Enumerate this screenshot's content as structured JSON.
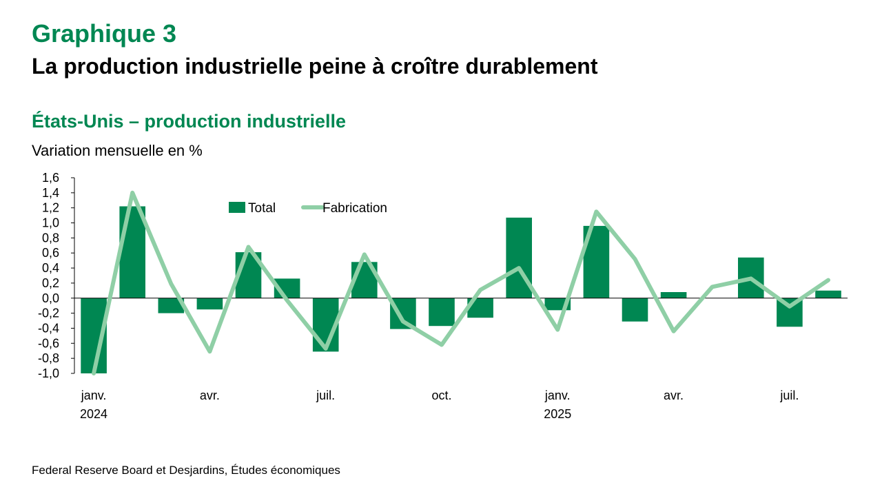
{
  "header": {
    "label": "Graphique 3",
    "title": "La production industrielle peine à croître durablement",
    "subtitle": "États-Unis – production industrielle",
    "unit": "Variation mensuelle en %"
  },
  "source": "Federal Reserve Board et Desjardins, Études économiques",
  "chart_data": {
    "type": "bar",
    "title": "États-Unis – production industrielle",
    "ylabel": "Variation mensuelle en %",
    "xlabel": "",
    "ylim": [
      -1.0,
      1.6
    ],
    "yticks": [
      -1.0,
      -0.8,
      -0.6,
      -0.4,
      -0.2,
      0.0,
      0.2,
      0.4,
      0.6,
      0.8,
      1.0,
      1.2,
      1.4,
      1.6
    ],
    "ytick_labels": [
      "-1,0",
      "-0,8",
      "-0,6",
      "-0,4",
      "-0,2",
      "0,0",
      "0,2",
      "0,4",
      "0,6",
      "0,8",
      "1,0",
      "1,2",
      "1,4",
      "1,6"
    ],
    "categories": [
      "2024-01",
      "2024-02",
      "2024-03",
      "2024-04",
      "2024-05",
      "2024-06",
      "2024-07",
      "2024-08",
      "2024-09",
      "2024-10",
      "2024-11",
      "2024-12",
      "2025-01",
      "2025-02",
      "2025-03",
      "2025-04",
      "2025-05",
      "2025-06",
      "2025-07",
      "2025-08"
    ],
    "x_tick_labels": [
      {
        "index": 0,
        "line1": "janv.",
        "line2": "2024"
      },
      {
        "index": 3,
        "line1": "avr.",
        "line2": ""
      },
      {
        "index": 6,
        "line1": "juil.",
        "line2": ""
      },
      {
        "index": 9,
        "line1": "oct.",
        "line2": ""
      },
      {
        "index": 12,
        "line1": "janv.",
        "line2": "2025"
      },
      {
        "index": 15,
        "line1": "avr.",
        "line2": ""
      },
      {
        "index": 18,
        "line1": "juil.",
        "line2": ""
      }
    ],
    "series": [
      {
        "name": "Total",
        "kind": "bar",
        "color": "#008752",
        "values": [
          -1.0,
          1.22,
          -0.2,
          -0.15,
          0.61,
          0.26,
          -0.71,
          0.48,
          -0.41,
          -0.37,
          -0.26,
          1.07,
          -0.16,
          0.96,
          -0.31,
          0.08,
          null,
          0.54,
          -0.38,
          0.1
        ]
      },
      {
        "name": "Fabrication",
        "kind": "line",
        "color": "#8fcfa6",
        "values": [
          -1.0,
          1.4,
          0.19,
          -0.71,
          0.68,
          -0.03,
          -0.67,
          0.58,
          -0.31,
          -0.62,
          0.11,
          0.4,
          -0.42,
          1.15,
          0.52,
          -0.44,
          0.15,
          0.26,
          -0.11,
          0.24
        ]
      }
    ],
    "legend_position": "top-center",
    "grid": false
  }
}
